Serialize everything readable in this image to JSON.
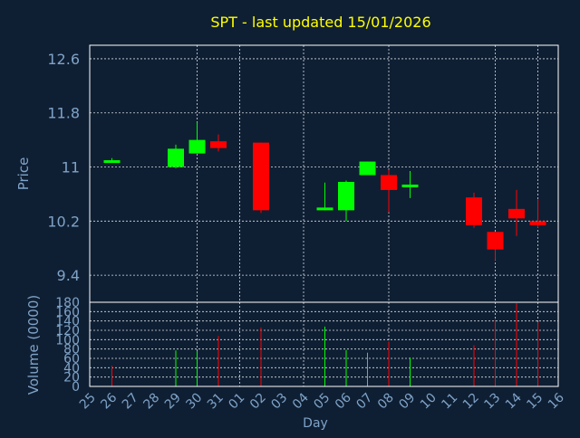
{
  "colors": {
    "background": "#0f1f33",
    "axis_text": "#7fa3c8",
    "title": "#ffff00",
    "frame": "#ffffff",
    "grid": "#d7dde5",
    "up": "#00ff00",
    "down": "#ff0000"
  },
  "chart_data": [
    {
      "type": "candlestick",
      "title": "SPT - last updated 15/01/2026",
      "xlabel": "",
      "ylabel": "Price",
      "ylim": [
        9.0,
        12.8
      ],
      "yticks": [
        "12.6",
        "11.8",
        "11",
        "10.2",
        "9.4"
      ],
      "grid": true,
      "categories": [
        "25",
        "26",
        "27",
        "28",
        "29",
        "30",
        "31",
        "01",
        "02",
        "03",
        "04",
        "05",
        "06",
        "07",
        "08",
        "09",
        "10",
        "11",
        "12",
        "13",
        "14",
        "15",
        "16"
      ],
      "candles": [
        {
          "x": "26",
          "open": 11.1,
          "close": 11.1,
          "high": 11.13,
          "low": 11.08
        },
        {
          "x": "29",
          "open": 11.0,
          "close": 11.27,
          "high": 11.33,
          "low": 10.98
        },
        {
          "x": "30",
          "open": 11.2,
          "close": 11.4,
          "high": 11.66,
          "low": 11.2
        },
        {
          "x": "31",
          "open": 11.38,
          "close": 11.28,
          "high": 11.48,
          "low": 11.23
        },
        {
          "x": "02",
          "open": 11.36,
          "close": 10.36,
          "high": 11.36,
          "low": 10.32
        },
        {
          "x": "05",
          "open": 10.36,
          "close": 10.4,
          "high": 10.77,
          "low": 10.36
        },
        {
          "x": "06",
          "open": 10.36,
          "close": 10.78,
          "high": 10.8,
          "low": 10.2
        },
        {
          "x": "07",
          "open": 10.88,
          "close": 11.08,
          "high": 11.08,
          "low": 10.88
        },
        {
          "x": "08",
          "open": 10.88,
          "close": 10.66,
          "high": 10.96,
          "low": 10.33
        },
        {
          "x": "09",
          "open": 10.7,
          "close": 10.74,
          "high": 10.94,
          "low": 10.54
        },
        {
          "x": "12",
          "open": 10.55,
          "close": 10.14,
          "high": 10.62,
          "low": 10.1
        },
        {
          "x": "13",
          "open": 10.04,
          "close": 9.78,
          "high": 10.04,
          "low": 9.62
        },
        {
          "x": "14",
          "open": 10.38,
          "close": 10.24,
          "high": 10.66,
          "low": 9.98
        },
        {
          "x": "15",
          "open": 10.2,
          "close": 10.14,
          "high": 10.52,
          "low": 10.1
        }
      ]
    },
    {
      "type": "bar",
      "title": "",
      "xlabel": "Day",
      "ylabel": "Volume (0000)",
      "ylim": [
        0,
        180
      ],
      "yticks": [
        "0",
        "20",
        "40",
        "60",
        "80",
        "100",
        "120",
        "140",
        "160",
        "180"
      ],
      "grid": true,
      "categories": [
        "25",
        "26",
        "27",
        "28",
        "29",
        "30",
        "31",
        "01",
        "02",
        "03",
        "04",
        "05",
        "06",
        "07",
        "08",
        "09",
        "10",
        "11",
        "12",
        "13",
        "14",
        "15",
        "16"
      ],
      "bars": [
        {
          "x": "26",
          "value": 44,
          "direction": "down"
        },
        {
          "x": "29",
          "value": 77,
          "direction": "up"
        },
        {
          "x": "30",
          "value": 76,
          "direction": "up"
        },
        {
          "x": "31",
          "value": 108,
          "direction": "down"
        },
        {
          "x": "02",
          "value": 126,
          "direction": "down"
        },
        {
          "x": "05",
          "value": 128,
          "direction": "up"
        },
        {
          "x": "06",
          "value": 78,
          "direction": "up"
        },
        {
          "x": "07",
          "value": 72,
          "direction": "up"
        },
        {
          "x": "08",
          "value": 96,
          "direction": "down"
        },
        {
          "x": "09",
          "value": 62,
          "direction": "up"
        },
        {
          "x": "12",
          "value": 88,
          "direction": "down"
        },
        {
          "x": "13",
          "value": 143,
          "direction": "down"
        },
        {
          "x": "14",
          "value": 178,
          "direction": "down"
        },
        {
          "x": "15",
          "value": 138,
          "direction": "down"
        }
      ]
    }
  ]
}
